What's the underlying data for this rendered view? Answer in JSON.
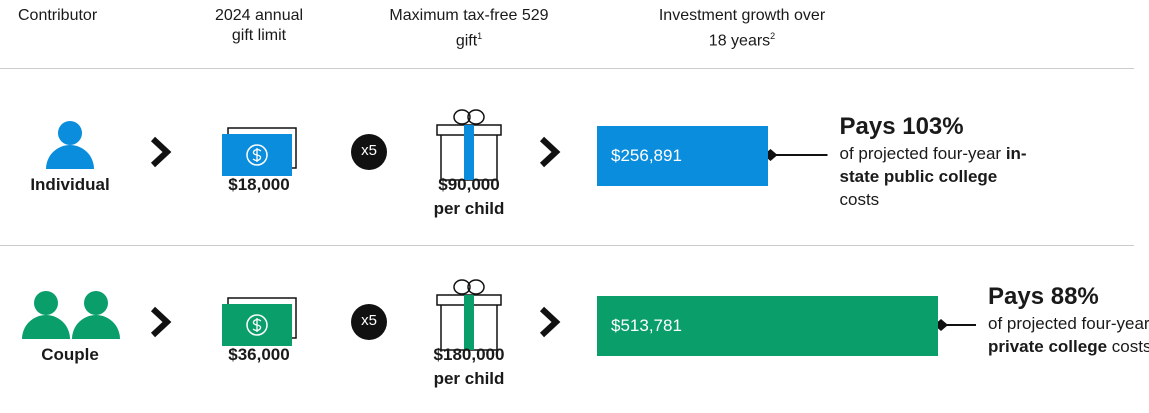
{
  "headers": [
    {
      "text": "Contributor"
    },
    {
      "text": "2024 annual gift limit"
    },
    {
      "text": "Maximum tax-free 529 gift",
      "note": "1"
    },
    {
      "text": "Investment growth over 18 years",
      "note": "2"
    }
  ],
  "rows": [
    {
      "contributor": "Individual",
      "color": "#0a8ddc",
      "people": 1,
      "gift_limit": "$18,000",
      "multiplier": "x5",
      "max_gift": "$90,000",
      "per": "per child",
      "growth": 256891,
      "growth_label": "$256,891",
      "pays": "Pays 103%",
      "desc_before": "of projected four-year ",
      "desc_bold": "in-state public college",
      "desc_after": " costs"
    },
    {
      "contributor": "Couple",
      "color": "#0a9e6b",
      "people": 2,
      "gift_limit": "$36,000",
      "multiplier": "x5",
      "max_gift": "$180,000",
      "per": "per child",
      "growth": 513781,
      "growth_label": "$513,781",
      "pays": "Pays 88%",
      "desc_before": "of projected four-year ",
      "desc_bold": "private college",
      "desc_after": " costs"
    }
  ]
}
